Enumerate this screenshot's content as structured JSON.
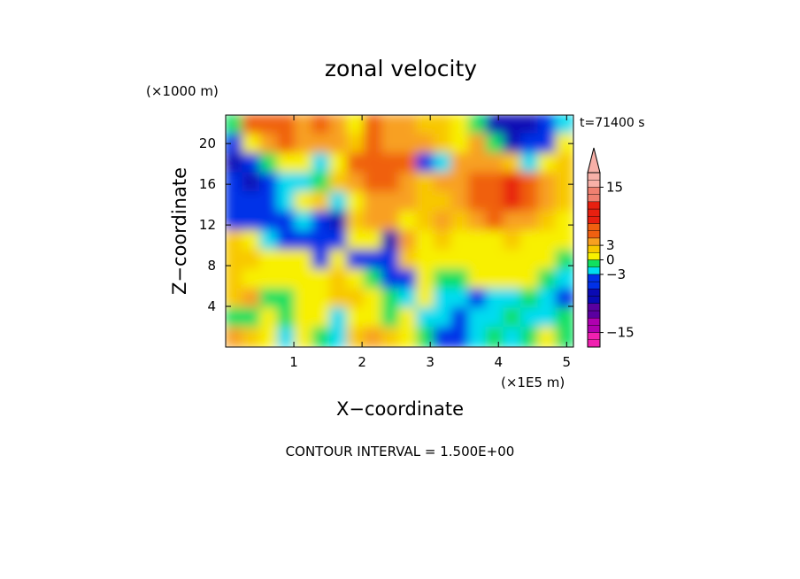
{
  "chart_data": {
    "type": "heatmap",
    "title": "zonal velocity",
    "xlabel": "X−coordinate",
    "ylabel": "Z−coordinate",
    "x_unit": "(×1E5 m)",
    "y_unit": "(×1000 m)",
    "time_label": "t=71400 s",
    "footer": "CONTOUR INTERVAL = 1.500E+00",
    "x_ticks": [
      1,
      2,
      3,
      4,
      5
    ],
    "y_ticks": [
      4,
      8,
      12,
      16,
      20
    ],
    "xlim": [
      0.0,
      5.1
    ],
    "ylim": [
      0.0,
      22.8
    ],
    "contour_interval": 1.5,
    "colorbar": {
      "levels": [
        -18,
        -16.5,
        -15,
        -13.5,
        -12,
        -10.5,
        -9,
        -7.5,
        -6,
        -4.5,
        -3,
        -1.5,
        0,
        1.5,
        3,
        4.5,
        6,
        7.5,
        9,
        10.5,
        12,
        13.5,
        15,
        16.5,
        18
      ],
      "labels": [
        {
          "value": 15,
          "text": "15"
        },
        {
          "value": 3,
          "text": "3"
        },
        {
          "value": 0,
          "text": "0"
        },
        {
          "value": -3,
          "text": "−3"
        },
        {
          "value": -15,
          "text": "−15"
        }
      ],
      "colors": {
        "pink_low": "#f020b0",
        "magenta": "#b000b0",
        "purple": "#5a00a0",
        "dark_blue": "#0a0ab4",
        "blue": "#0030e8",
        "cyan": "#00dcf0",
        "green": "#10e060",
        "yellow_green": "#a8f000",
        "yellow": "#f8f000",
        "light_orange": "#f8c800",
        "orange": "#f8a020",
        "dark_orange": "#f06010",
        "red": "#e82010",
        "salmon": "#f08070",
        "pink": "#f8b0a8"
      }
    },
    "field_summary": {
      "rows": 12,
      "cols": 20,
      "values": [
        [
          -1,
          6,
          6,
          6,
          4.5,
          6,
          4.5,
          1.5,
          6,
          4.5,
          4.5,
          3,
          3,
          1.5,
          0,
          -7,
          -7,
          -6,
          -4.5,
          -1.5
        ],
        [
          -4.5,
          1.5,
          4.5,
          6,
          4.5,
          4.5,
          4.5,
          3,
          7,
          4.5,
          4.5,
          4.5,
          3,
          1.5,
          4.5,
          -1,
          -6,
          -4.5,
          -3,
          1.5
        ],
        [
          -6,
          -4.5,
          0,
          1.5,
          1.5,
          -1.5,
          1.5,
          6,
          7.5,
          6,
          6,
          -4.5,
          -1.5,
          4.5,
          4.5,
          4.5,
          3,
          -1.5,
          1.5,
          3
        ],
        [
          -4.5,
          -6,
          -3,
          -1.5,
          -1.5,
          0,
          3,
          4.5,
          6,
          6,
          4.5,
          3,
          4.5,
          4.5,
          6,
          7.5,
          9,
          7.5,
          4.5,
          3
        ],
        [
          -3,
          -4.5,
          -3,
          -1.5,
          1.5,
          3,
          -1.5,
          1.5,
          4.5,
          4.5,
          4.5,
          3,
          3,
          4.5,
          6,
          7.5,
          9,
          6,
          4.5,
          3
        ],
        [
          -4.5,
          -4.5,
          -3,
          -3,
          -1.5,
          -4.5,
          -6,
          3,
          4.5,
          4.5,
          1.5,
          3,
          4.5,
          3,
          4.5,
          6,
          4.5,
          4.5,
          3,
          1.5
        ],
        [
          3,
          1.5,
          -1.5,
          -3,
          -4.5,
          -4.5,
          -3,
          1.5,
          1.5,
          -6,
          4.5,
          1.5,
          3,
          1.5,
          1.5,
          1.5,
          3,
          1.5,
          1.5,
          1.5
        ],
        [
          3,
          3,
          1.5,
          1.5,
          1.5,
          -3,
          1.5,
          -4.5,
          -3,
          -4.5,
          3,
          1.5,
          1.5,
          1.5,
          1.5,
          1.5,
          1.5,
          1.5,
          1.5,
          0
        ],
        [
          3,
          1.5,
          1.5,
          1.5,
          1.5,
          1.5,
          3,
          1.5,
          0,
          -4.5,
          -4.5,
          1.5,
          0,
          0,
          1.5,
          1.5,
          1.5,
          1.5,
          0,
          -1.5
        ],
        [
          3,
          4.5,
          0,
          0,
          1.5,
          1.5,
          3,
          3,
          1.5,
          0,
          -1.5,
          1.5,
          -1.5,
          -1.5,
          -3,
          -1.5,
          -1.5,
          0,
          -1.5,
          -3
        ],
        [
          0,
          0,
          1.5,
          0,
          1.5,
          1.5,
          -1.5,
          1.5,
          1.5,
          0,
          1.5,
          -1.5,
          -1.5,
          -3,
          -1.5,
          -1.5,
          0,
          -1.5,
          -1.5,
          0
        ],
        [
          4.5,
          3,
          1.5,
          -1.5,
          1.5,
          0,
          -1.5,
          3,
          4.5,
          3,
          1.5,
          0,
          -3,
          -3,
          -1.5,
          0,
          -1.5,
          0,
          1.5,
          0
        ]
      ]
    }
  }
}
